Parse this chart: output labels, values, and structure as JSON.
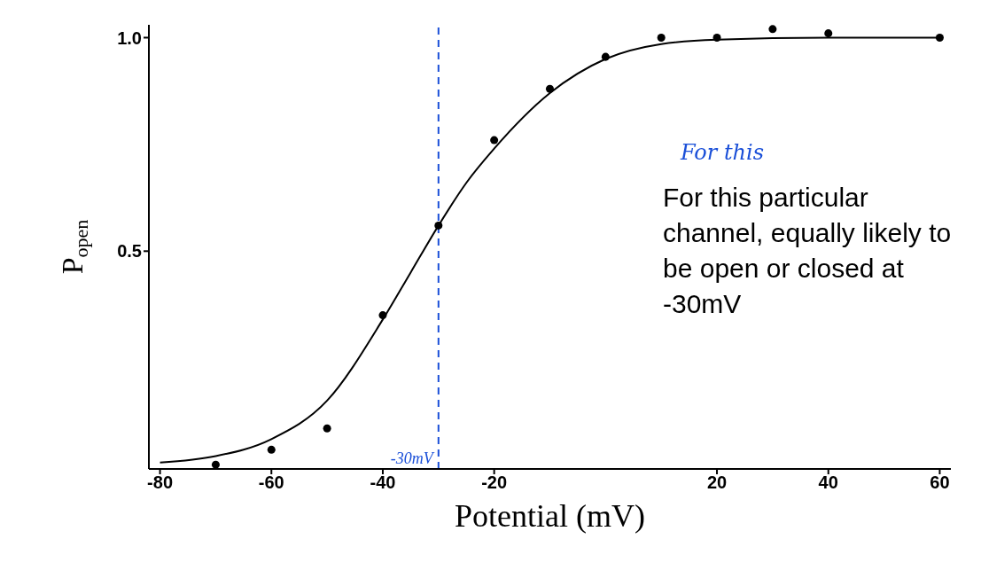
{
  "chart_data": {
    "type": "scatter",
    "xlabel": "Potential (mV)",
    "ylabel": "P$_{open}$",
    "xlim": [
      -82,
      62
    ],
    "ylim": [
      -0.01,
      1.03
    ],
    "xticks": [
      -80,
      -60,
      -40,
      -20,
      20,
      40,
      60
    ],
    "yticks": [
      {
        "value": 0.5,
        "label": "0.5"
      },
      {
        "value": 1,
        "label": "1.0"
      }
    ],
    "grid": false,
    "legend": false,
    "series": [
      {
        "marker": "circle",
        "color": "#000000",
        "x": [
          -70,
          -60,
          -50,
          -40,
          -30,
          -20,
          -10,
          0,
          10,
          20,
          30,
          40,
          60
        ],
        "values": [
          0,
          0.035,
          0.085,
          0.35,
          0.56,
          0.76,
          0.88,
          0.955,
          1.0,
          1.0,
          1.02,
          1.01,
          1.0
        ]
      },
      {
        "type": "line",
        "color": "#000000",
        "line_style": "solid",
        "x": [
          -80,
          -70,
          -60,
          -50,
          -40,
          -35,
          -30,
          -25,
          -20,
          -10,
          0,
          10,
          20,
          40,
          60
        ],
        "values": [
          0.005,
          0.02,
          0.06,
          0.15,
          0.34,
          0.45,
          0.56,
          0.66,
          0.74,
          0.87,
          0.95,
          0.985,
          0.995,
          1.0,
          1.0
        ]
      }
    ],
    "ref_lines": [
      {
        "axis": "x",
        "value": -30,
        "label": "-30mV",
        "color": "#1a4fd8",
        "line_style": "dashed"
      }
    ],
    "annotations": [
      "For this",
      "For this particular channel, equally likely to be open or closed at -30mV"
    ]
  }
}
